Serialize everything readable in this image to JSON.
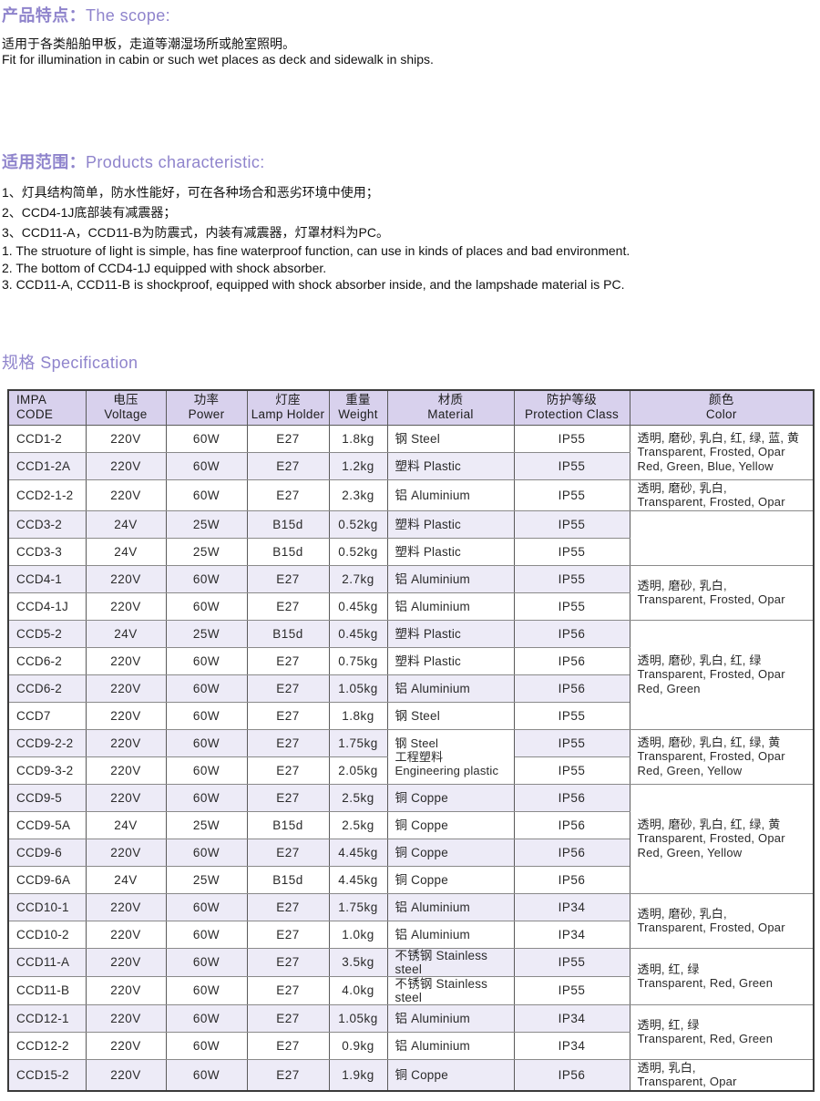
{
  "theme": {
    "accent_purple": "#8F84CC",
    "table_header_bg": "#D8D1ED",
    "row_stripe_bg": "#EDEBF7",
    "border_dark": "#3A3A3A",
    "text": "#1D1D1D"
  },
  "sections": {
    "scope": {
      "heading_zh": "产品特点：",
      "heading_en": "The scope:",
      "lines": [
        "适用于各类船舶甲板，走道等潮湿场所或舱室照明。",
        "Fit for illumination in cabin or such wet places as deck and sidewalk in ships."
      ]
    },
    "characteristics": {
      "heading_zh": "适用范围：",
      "heading_en": "Products characteristic:",
      "lines_zh": [
        "1、灯具结构简单，防水性能好，可在各种场合和恶劣环境中使用；",
        "2、CCD4-1J底部装有减震器；",
        "3、CCD11-A，CCD11-B为防震式，内装有减震器，灯罩材料为PC。"
      ],
      "lines_en": [
        "1. The struoture of light is simple, has fine waterproof function, can use in kinds of places and bad environment.",
        "2. The bottom of CCD4-1J equipped with shock absorber.",
        "3. CCD11-A, CCD11-B is shockproof, equipped with shock absorber inside, and the lampshade material is PC."
      ]
    },
    "spec": {
      "heading": "规格 Specification"
    }
  },
  "table": {
    "columns": [
      {
        "zh": "IMPA",
        "en": "CODE"
      },
      {
        "zh": "电压",
        "en": "Voltage"
      },
      {
        "zh": "功率",
        "en": "Power"
      },
      {
        "zh": "灯座",
        "en": "Lamp Holder"
      },
      {
        "zh": "重量",
        "en": "Weight"
      },
      {
        "zh": "材质",
        "en": "Material"
      },
      {
        "zh": "防护等级",
        "en": "Protection Class"
      },
      {
        "zh": "颜色",
        "en": "Color"
      }
    ],
    "rows": [
      [
        "CCD1-2",
        "220V",
        "60W",
        "E27",
        "1.8kg"
      ],
      [
        "CCD1-2A",
        "220V",
        "60W",
        "E27",
        "1.2kg"
      ],
      [
        "CCD2-1-2",
        "220V",
        "60W",
        "E27",
        "2.3kg"
      ],
      [
        "CCD3-2",
        "24V",
        "25W",
        "B15d",
        "0.52kg"
      ],
      [
        "CCD3-3",
        "24V",
        "25W",
        "B15d",
        "0.52kg"
      ],
      [
        "CCD4-1",
        "220V",
        "60W",
        "E27",
        "2.7kg"
      ],
      [
        "CCD4-1J",
        "220V",
        "60W",
        "E27",
        "0.45kg"
      ],
      [
        "CCD5-2",
        "24V",
        "25W",
        "B15d",
        "0.45kg"
      ],
      [
        "CCD6-2",
        "220V",
        "60W",
        "E27",
        "0.75kg"
      ],
      [
        "CCD6-2",
        "220V",
        "60W",
        "E27",
        "1.05kg"
      ],
      [
        "CCD7",
        "220V",
        "60W",
        "E27",
        "1.8kg"
      ],
      [
        "CCD9-2-2",
        "220V",
        "60W",
        "E27",
        "1.75kg"
      ],
      [
        "CCD9-3-2",
        "220V",
        "60W",
        "E27",
        "2.05kg"
      ],
      [
        "CCD9-5",
        "220V",
        "60W",
        "E27",
        "2.5kg"
      ],
      [
        "CCD9-5A",
        "24V",
        "25W",
        "B15d",
        "2.5kg"
      ],
      [
        "CCD9-6",
        "220V",
        "60W",
        "E27",
        "4.45kg"
      ],
      [
        "CCD9-6A",
        "24V",
        "25W",
        "B15d",
        "4.45kg"
      ],
      [
        "CCD10-1",
        "220V",
        "60W",
        "E27",
        "1.75kg"
      ],
      [
        "CCD10-2",
        "220V",
        "60W",
        "E27",
        "1.0kg"
      ],
      [
        "CCD11-A",
        "220V",
        "60W",
        "E27",
        "3.5kg"
      ],
      [
        "CCD11-B",
        "220V",
        "60W",
        "E27",
        "4.0kg"
      ],
      [
        "CCD12-1",
        "220V",
        "60W",
        "E27",
        "1.05kg"
      ],
      [
        "CCD12-2",
        "220V",
        "60W",
        "E27",
        "0.9kg"
      ],
      [
        "CCD15-2",
        "220V",
        "60W",
        "E27",
        "1.9kg"
      ]
    ],
    "protection": [
      "IP55",
      "IP55",
      "IP55",
      "IP55",
      "IP55",
      "IP55",
      "IP55",
      "IP56",
      "IP56",
      "IP56",
      "IP55",
      "IP55",
      "IP55",
      "IP56",
      "IP56",
      "IP56",
      "IP56",
      "IP34",
      "IP34",
      "IP55",
      "IP55",
      "IP34",
      "IP34",
      "IP56"
    ],
    "material_cells": [
      {
        "row": 0,
        "span": 1,
        "lines": [
          "钢 Steel"
        ]
      },
      {
        "row": 1,
        "span": 1,
        "lines": [
          "塑料 Plastic"
        ]
      },
      {
        "row": 2,
        "span": 1,
        "lines": [
          "铝 Aluminium"
        ]
      },
      {
        "row": 3,
        "span": 1,
        "lines": [
          "塑料 Plastic"
        ]
      },
      {
        "row": 4,
        "span": 1,
        "lines": [
          "塑料 Plastic"
        ]
      },
      {
        "row": 5,
        "span": 1,
        "lines": [
          "铝 Aluminium"
        ]
      },
      {
        "row": 6,
        "span": 1,
        "lines": [
          "铝 Aluminium"
        ]
      },
      {
        "row": 7,
        "span": 1,
        "lines": [
          "塑料 Plastic"
        ]
      },
      {
        "row": 8,
        "span": 1,
        "lines": [
          "塑料 Plastic"
        ]
      },
      {
        "row": 9,
        "span": 1,
        "lines": [
          "铝 Aluminium"
        ]
      },
      {
        "row": 10,
        "span": 1,
        "lines": [
          "钢 Steel"
        ]
      },
      {
        "row": 11,
        "span": 2,
        "lines": [
          "钢 Steel",
          "工程塑料",
          "Engineering plastic"
        ]
      },
      {
        "row": 13,
        "span": 1,
        "lines": [
          "铜 Coppe"
        ]
      },
      {
        "row": 14,
        "span": 1,
        "lines": [
          "铜 Coppe"
        ]
      },
      {
        "row": 15,
        "span": 1,
        "lines": [
          "铜 Coppe"
        ]
      },
      {
        "row": 16,
        "span": 1,
        "lines": [
          "铜 Coppe"
        ]
      },
      {
        "row": 17,
        "span": 1,
        "lines": [
          "铝 Aluminium"
        ]
      },
      {
        "row": 18,
        "span": 1,
        "lines": [
          "铝 Aluminium"
        ]
      },
      {
        "row": 19,
        "span": 1,
        "lines": [
          "不锈钢 Stainless steel"
        ]
      },
      {
        "row": 20,
        "span": 1,
        "lines": [
          "不锈钢 Stainless steel"
        ]
      },
      {
        "row": 21,
        "span": 1,
        "lines": [
          "铝 Aluminium"
        ]
      },
      {
        "row": 22,
        "span": 1,
        "lines": [
          "铝 Aluminium"
        ]
      },
      {
        "row": 23,
        "span": 1,
        "lines": [
          "铜 Coppe"
        ]
      }
    ],
    "color_cells": [
      {
        "row": 0,
        "span": 2,
        "lines": [
          "透明, 磨砂, 乳白, 红, 绿, 蓝, 黄",
          "Transparent, Frosted, Opar",
          "Red, Green, Blue, Yellow"
        ]
      },
      {
        "row": 2,
        "span": 1,
        "lines": [
          "透明, 磨砂, 乳白,",
          "Transparent, Frosted, Opar"
        ]
      },
      {
        "row": 3,
        "span": 2,
        "lines": []
      },
      {
        "row": 5,
        "span": 2,
        "lines": [
          "透明, 磨砂, 乳白,",
          "Transparent, Frosted, Opar"
        ]
      },
      {
        "row": 7,
        "span": 4,
        "lines": [
          "透明, 磨砂, 乳白, 红, 绿",
          "Transparent, Frosted, Opar",
          "Red, Green"
        ]
      },
      {
        "row": 11,
        "span": 2,
        "lines": [
          "透明, 磨砂, 乳白, 红, 绿, 黄",
          "Transparent, Frosted, Opar",
          "Red, Green, Yellow"
        ]
      },
      {
        "row": 13,
        "span": 4,
        "lines": [
          "透明, 磨砂, 乳白, 红, 绿, 黄",
          "Transparent, Frosted, Opar",
          "Red, Green, Yellow"
        ]
      },
      {
        "row": 17,
        "span": 2,
        "lines": [
          "透明, 磨砂, 乳白,",
          "Transparent, Frosted, Opar"
        ]
      },
      {
        "row": 19,
        "span": 2,
        "lines": [
          "透明, 红, 绿",
          "Transparent, Red, Green"
        ]
      },
      {
        "row": 21,
        "span": 2,
        "lines": [
          "透明, 红, 绿",
          "Transparent, Red, Green"
        ]
      },
      {
        "row": 23,
        "span": 1,
        "lines": [
          "透明, 乳白,",
          "Transparent, Opar"
        ]
      }
    ]
  }
}
